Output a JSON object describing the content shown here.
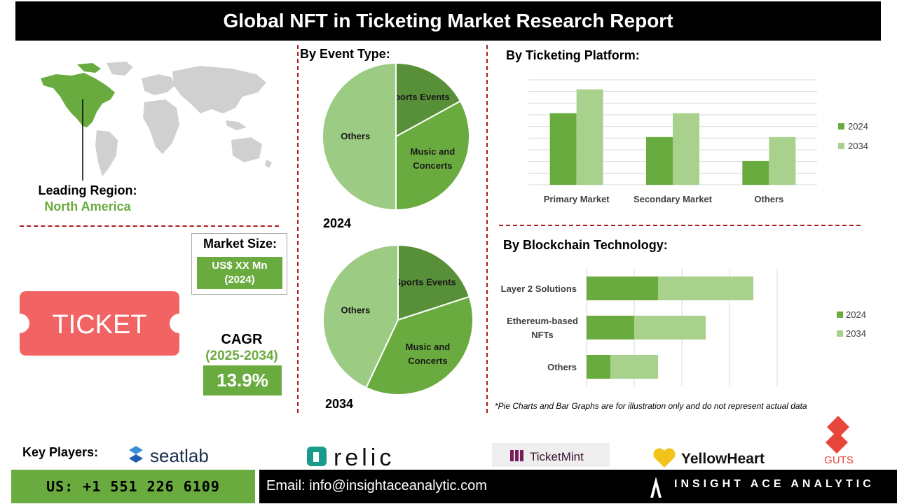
{
  "header": {
    "title": "Global NFT in Ticketing Market Research Report"
  },
  "region": {
    "label": "Leading Region:",
    "value": "North America"
  },
  "market_size": {
    "label": "Market Size:",
    "value_line1": "US$ XX Mn",
    "value_line2": "(2024)"
  },
  "ticket": {
    "text": "TICKET"
  },
  "cagr": {
    "label": "CAGR",
    "period": "(2025-2034)",
    "value": "13.9%"
  },
  "note": "*Pie Charts and Bar Graphs are for illustration only and do not represent actual data",
  "key_players": {
    "label": "Key Players:",
    "logos": [
      "seatlab",
      "relic",
      "TicketMint",
      "YellowHeart",
      "GUTS"
    ]
  },
  "footer": {
    "phone": "US: +1 551 226 6109",
    "email": "Email: info@insightaceanalytic.com",
    "brand": "INSIGHT ACE ANALYTIC"
  },
  "colors": {
    "dark_green": "#588f39",
    "mid_green": "#6aab3f",
    "light_green": "#9ccb84",
    "pale_green": "#a9d18e",
    "accent_red": "#b01c1c",
    "ticket_red": "#f26464"
  },
  "chart_data": [
    {
      "type": "pie",
      "title": "By Event Type:",
      "year": "2024",
      "slices": [
        {
          "label": "Sports Events",
          "value": 17,
          "color": "#588f39"
        },
        {
          "label": "Music and Concerts",
          "value": 33,
          "color": "#6aab3f"
        },
        {
          "label": "Others",
          "value": 50,
          "color": "#9ccb84"
        }
      ]
    },
    {
      "type": "pie",
      "title": "",
      "year": "2034",
      "slices": [
        {
          "label": "Sports Events",
          "value": 20,
          "color": "#588f39"
        },
        {
          "label": "Music and Concerts",
          "value": 37,
          "color": "#6aab3f"
        },
        {
          "label": "Others",
          "value": 43,
          "color": "#9ccb84"
        }
      ]
    },
    {
      "type": "bar",
      "orientation": "vertical",
      "title": "By Ticketing Platform:",
      "categories": [
        "Primary Market",
        "Secondary Market",
        "Others"
      ],
      "series": [
        {
          "name": "2024",
          "values": [
            6,
            4,
            2
          ],
          "color": "#6aab3f"
        },
        {
          "name": "2034",
          "values": [
            8,
            6,
            4
          ],
          "color": "#a9d18e"
        }
      ],
      "ylim": [
        0,
        8.8
      ],
      "grid": true,
      "legend": "right"
    },
    {
      "type": "bar",
      "orientation": "horizontal",
      "stacked": true,
      "title": "By Blockchain Technology:",
      "categories": [
        "Layer 2 Solutions",
        "Ethereum-based NFTs",
        "Others"
      ],
      "series": [
        {
          "name": "2024",
          "values": [
            3,
            2,
            1
          ],
          "color": "#6aab3f"
        },
        {
          "name": "2034",
          "values": [
            4,
            3,
            2
          ],
          "color": "#a9d18e"
        }
      ],
      "xlim": [
        0,
        8
      ],
      "grid": true,
      "legend": "right"
    }
  ]
}
